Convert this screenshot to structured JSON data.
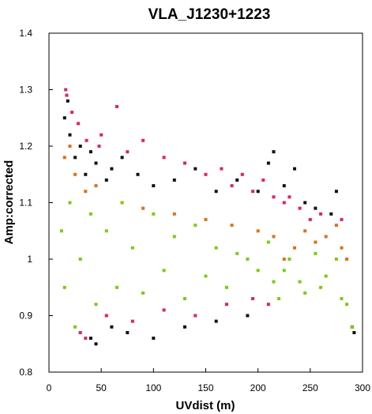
{
  "chart_data": {
    "type": "scatter",
    "title": "VLA_J1230+1223",
    "xlabel": "UVdist (m)",
    "ylabel": "Amp:corrected",
    "xlim": [
      0,
      300
    ],
    "ylim": [
      0.8,
      1.4
    ],
    "xticks": [
      0,
      50,
      100,
      150,
      200,
      250,
      300
    ],
    "yticks": [
      0.8,
      0.9,
      1,
      1.1,
      1.2,
      1.3,
      1.4
    ],
    "grid": false,
    "legend": "none",
    "series": [
      {
        "color": "#111111",
        "points": [
          [
            15,
            1.25
          ],
          [
            18,
            1.28
          ],
          [
            20,
            1.22
          ],
          [
            25,
            1.18
          ],
          [
            30,
            1.2
          ],
          [
            35,
            1.15
          ],
          [
            40,
            1.19
          ],
          [
            45,
            1.17
          ],
          [
            55,
            1.14
          ],
          [
            60,
            1.16
          ],
          [
            70,
            1.18
          ],
          [
            85,
            1.15
          ],
          [
            100,
            1.13
          ],
          [
            120,
            1.14
          ],
          [
            140,
            1.16
          ],
          [
            160,
            1.12
          ],
          [
            180,
            1.14
          ],
          [
            200,
            1.12
          ],
          [
            210,
            1.17
          ],
          [
            215,
            1.19
          ],
          [
            225,
            1.13
          ],
          [
            235,
            1.16
          ],
          [
            245,
            1.1
          ],
          [
            255,
            1.09
          ],
          [
            270,
            1.08
          ],
          [
            275,
            1.12
          ],
          [
            290,
            0.88
          ],
          [
            292,
            0.87
          ],
          [
            40,
            0.86
          ],
          [
            45,
            0.85
          ],
          [
            60,
            0.88
          ],
          [
            75,
            0.87
          ],
          [
            100,
            0.86
          ],
          [
            130,
            0.88
          ],
          [
            160,
            0.89
          ],
          [
            190,
            0.9
          ]
        ]
      },
      {
        "color": "#e0206b",
        "points": [
          [
            16,
            1.3
          ],
          [
            17,
            1.29
          ],
          [
            22,
            1.26
          ],
          [
            28,
            1.24
          ],
          [
            36,
            1.21
          ],
          [
            48,
            1.2
          ],
          [
            50,
            1.22
          ],
          [
            65,
            1.27
          ],
          [
            75,
            1.19
          ],
          [
            90,
            1.21
          ],
          [
            110,
            1.18
          ],
          [
            130,
            1.17
          ],
          [
            150,
            1.15
          ],
          [
            165,
            1.16
          ],
          [
            175,
            1.13
          ],
          [
            185,
            1.15
          ],
          [
            195,
            1.12
          ],
          [
            205,
            1.14
          ],
          [
            215,
            1.11
          ],
          [
            225,
            1.1
          ],
          [
            230,
            1.11
          ],
          [
            240,
            1.09
          ],
          [
            250,
            1.07
          ],
          [
            260,
            1.08
          ],
          [
            280,
            1.07
          ],
          [
            30,
            0.87
          ],
          [
            35,
            0.86
          ],
          [
            55,
            0.9
          ],
          [
            80,
            0.89
          ],
          [
            110,
            0.91
          ],
          [
            140,
            0.9
          ],
          [
            170,
            0.92
          ],
          [
            195,
            0.93
          ],
          [
            210,
            0.92
          ]
        ]
      },
      {
        "color": "#e07018",
        "points": [
          [
            15,
            1.18
          ],
          [
            20,
            1.2
          ],
          [
            25,
            1.15
          ],
          [
            35,
            1.12
          ],
          [
            45,
            1.13
          ],
          [
            70,
            1.1
          ],
          [
            90,
            1.09
          ],
          [
            120,
            1.08
          ],
          [
            150,
            1.07
          ],
          [
            175,
            1.06
          ],
          [
            200,
            1.05
          ],
          [
            215,
            1.04
          ],
          [
            225,
            1.0
          ],
          [
            235,
            1.02
          ],
          [
            245,
            1.05
          ],
          [
            255,
            1.03
          ],
          [
            265,
            1.04
          ],
          [
            275,
            1.06
          ],
          [
            280,
            1.02
          ],
          [
            285,
            1.0
          ]
        ]
      },
      {
        "color": "#7ccc10",
        "points": [
          [
            12,
            1.05
          ],
          [
            15,
            0.95
          ],
          [
            20,
            1.1
          ],
          [
            25,
            0.88
          ],
          [
            30,
            1.0
          ],
          [
            40,
            1.08
          ],
          [
            45,
            0.92
          ],
          [
            55,
            1.05
          ],
          [
            65,
            0.95
          ],
          [
            70,
            1.1
          ],
          [
            80,
            1.02
          ],
          [
            90,
            0.94
          ],
          [
            100,
            1.08
          ],
          [
            110,
            0.98
          ],
          [
            120,
            1.04
          ],
          [
            130,
            0.93
          ],
          [
            140,
            1.06
          ],
          [
            150,
            0.97
          ],
          [
            160,
            1.02
          ],
          [
            170,
            0.95
          ],
          [
            180,
            1.01
          ],
          [
            190,
            1.0
          ],
          [
            200,
            0.98
          ],
          [
            210,
            1.03
          ],
          [
            215,
            0.96
          ],
          [
            220,
            0.93
          ],
          [
            225,
            0.98
          ],
          [
            230,
            1.0
          ],
          [
            240,
            0.96
          ],
          [
            245,
            0.94
          ],
          [
            255,
            1.01
          ],
          [
            260,
            0.95
          ],
          [
            265,
            0.97
          ],
          [
            275,
            1.0
          ],
          [
            280,
            0.93
          ],
          [
            285,
            0.92
          ],
          [
            290,
            0.88
          ]
        ]
      }
    ]
  }
}
